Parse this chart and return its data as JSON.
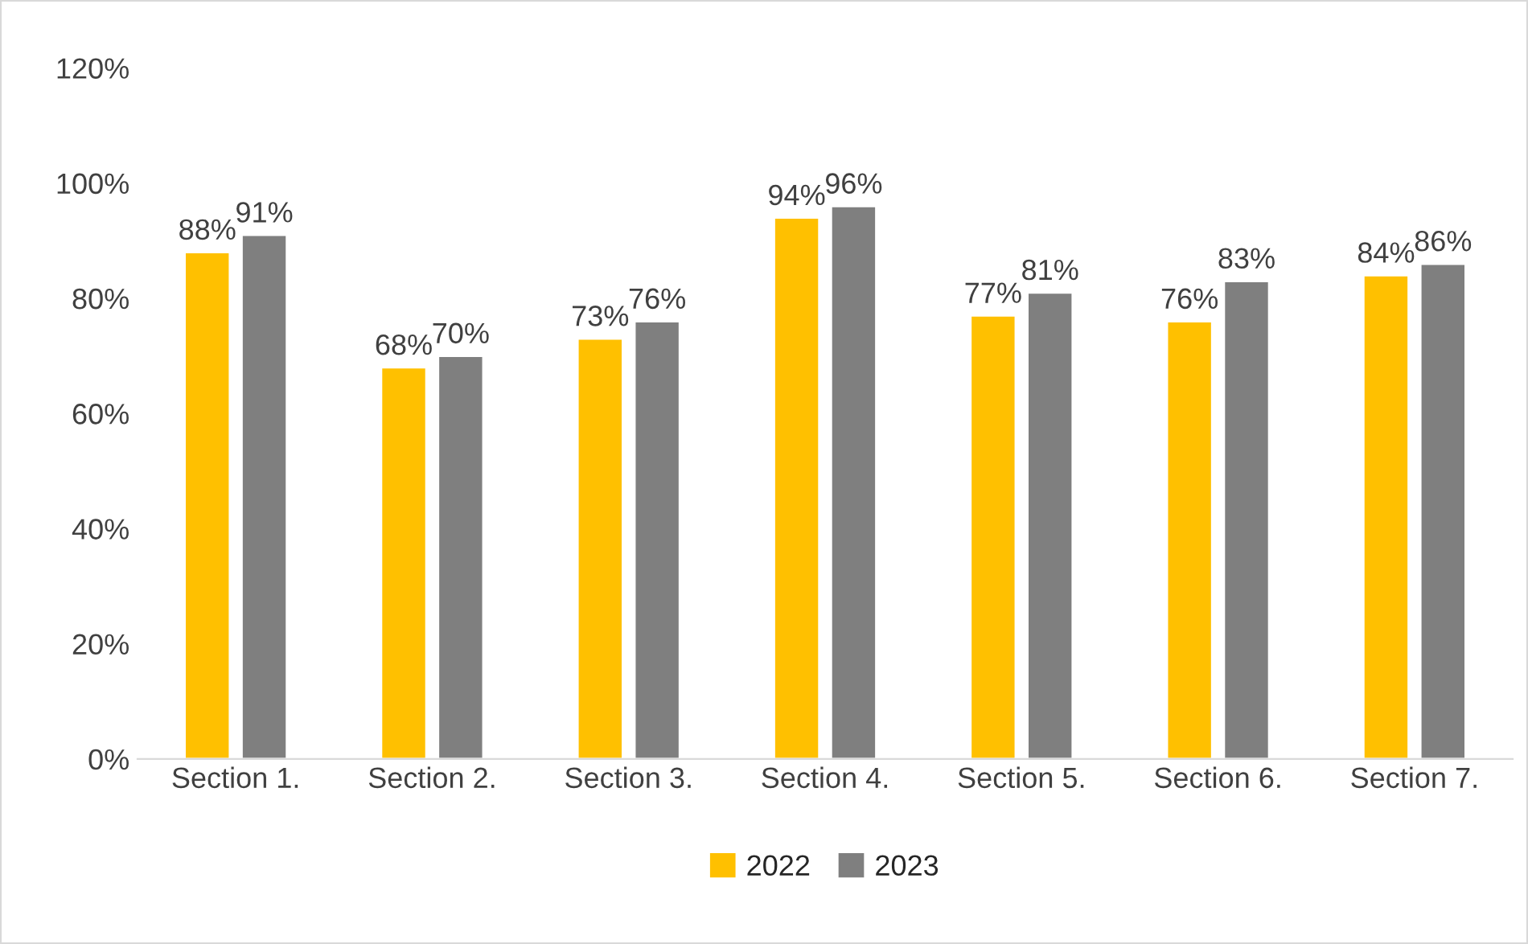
{
  "chart_data": {
    "type": "bar",
    "categories": [
      "Section 1.",
      "Section 2.",
      "Section 3.",
      "Section 4.",
      "Section 5.",
      "Section 6.",
      "Section 7."
    ],
    "series": [
      {
        "name": "2022",
        "color": "#ffc000",
        "values": [
          88,
          68,
          73,
          94,
          77,
          76,
          84
        ],
        "value_labels": [
          "88%",
          "68%",
          "73%",
          "94%",
          "77%",
          "76%",
          "84%"
        ]
      },
      {
        "name": "2023",
        "color": "#7f7f7f",
        "values": [
          91,
          70,
          76,
          96,
          81,
          83,
          86
        ],
        "value_labels": [
          "91%",
          "70%",
          "76%",
          "96%",
          "81%",
          "83%",
          "86%"
        ]
      }
    ],
    "ylim": [
      0,
      120
    ],
    "yticks": [
      {
        "value": 0,
        "label": "0%"
      },
      {
        "value": 20,
        "label": "20%"
      },
      {
        "value": 40,
        "label": "40%"
      },
      {
        "value": 60,
        "label": "60%"
      },
      {
        "value": 80,
        "label": "80%"
      },
      {
        "value": 100,
        "label": "100%"
      },
      {
        "value": 120,
        "label": "120%"
      }
    ],
    "grid": false,
    "legend": "bottom"
  }
}
